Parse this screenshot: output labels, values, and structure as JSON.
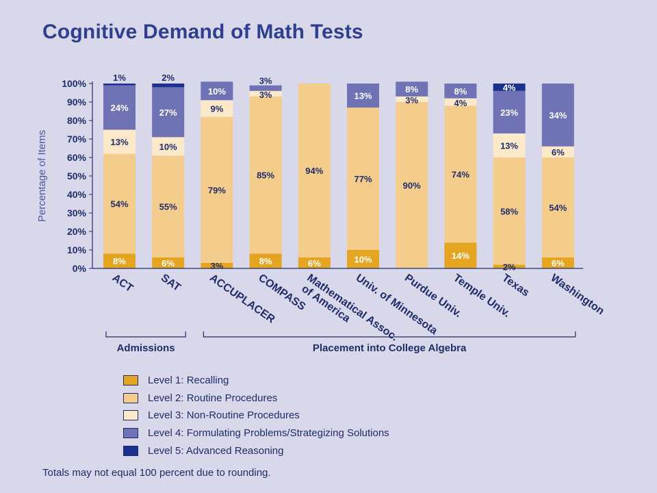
{
  "title": "Cognitive Demand of Math Tests",
  "chart_data": {
    "type": "bar",
    "stacked": true,
    "ylabel": "Percentage of Items",
    "ylim": [
      0,
      100
    ],
    "yticks": [
      "0%",
      "10%",
      "20%",
      "30%",
      "40%",
      "50%",
      "60%",
      "70%",
      "80%",
      "90%",
      "100%"
    ],
    "categories": [
      "ACT",
      "SAT",
      "ACCUPLACER",
      "COMPASS",
      "Mathematical Assoc. of America",
      "Univ. of Minnesota",
      "Purdue Univ.",
      "Temple Univ.",
      "Texas",
      "Washington"
    ],
    "category_lines": [
      [
        "ACT"
      ],
      [
        "SAT"
      ],
      [
        "ACCUPLACER"
      ],
      [
        "COMPASS"
      ],
      [
        "Mathematical Assoc.",
        "of America"
      ],
      [
        "Univ. of Minnesota"
      ],
      [
        "Purdue Univ."
      ],
      [
        "Temple Univ."
      ],
      [
        "Texas"
      ],
      [
        "Washington"
      ]
    ],
    "series": [
      {
        "name": "Level 1: Recalling",
        "color": "#e6a520",
        "values": [
          8,
          6,
          3,
          8,
          6,
          10,
          0,
          14,
          2,
          6
        ],
        "labels": [
          "8%",
          "6%",
          "3%",
          "8%",
          "6%",
          "10%",
          "",
          "14%",
          "2%",
          "6%"
        ]
      },
      {
        "name": "Level 2: Routine Procedures",
        "color": "#f4cd8c",
        "values": [
          54,
          55,
          79,
          85,
          94,
          77,
          90,
          74,
          58,
          54
        ],
        "labels": [
          "54%",
          "55%",
          "79%",
          "85%",
          "94%",
          "77%",
          "90%",
          "74%",
          "58%",
          "54%"
        ]
      },
      {
        "name": "Level 3: Non-Routine Procedures",
        "color": "#fbe9c9",
        "values": [
          13,
          10,
          9,
          3,
          0,
          0,
          3,
          4,
          13,
          6
        ],
        "labels": [
          "13%",
          "10%",
          "9%",
          "3%",
          "",
          "",
          "3%",
          "4%",
          "13%",
          "6%"
        ]
      },
      {
        "name": "Level 4: Formulating Problems/Strategizing Solutions",
        "color": "#6f73b6",
        "values": [
          24,
          27,
          10,
          3,
          0,
          13,
          8,
          8,
          23,
          34
        ],
        "labels": [
          "24%",
          "27%",
          "10%",
          "3%",
          "",
          "13%",
          "8%",
          "8%",
          "23%",
          "34%"
        ]
      },
      {
        "name": "Level 5: Advanced Reasoning",
        "color": "#1c3090",
        "values": [
          1,
          2,
          0,
          0,
          0,
          0,
          0,
          0,
          4,
          0
        ],
        "labels": [
          "1%",
          "2%",
          "",
          "",
          "",
          "",
          "",
          "",
          "4%",
          ""
        ]
      }
    ],
    "groups": [
      {
        "label": "Admissions",
        "from": 0,
        "to": 1
      },
      {
        "label": "Placement into College Algebra",
        "from": 2,
        "to": 9
      }
    ],
    "footnote": "Totals may not equal 100 percent due to rounding."
  }
}
